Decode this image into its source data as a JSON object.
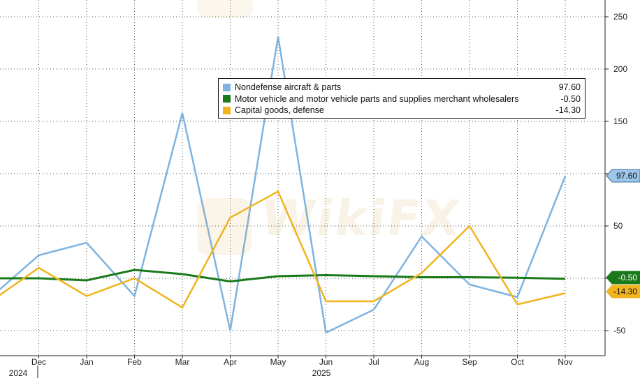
{
  "chart_data": {
    "type": "line",
    "x": [
      "Nov 2024",
      "Dec 2024",
      "Jan 2025",
      "Feb 2025",
      "Mar 2025",
      "Apr 2025",
      "May 2025",
      "Jun 2025",
      "Jul 2025",
      "Aug 2025",
      "Sep 2025",
      "Oct 2025",
      "Nov 2025"
    ],
    "month_labels": [
      "Dec",
      "Jan",
      "Feb",
      "Mar",
      "Apr",
      "May",
      "Jun",
      "Jul",
      "Aug",
      "Sep",
      "Oct",
      "Nov"
    ],
    "year_labels": [
      "2024",
      "2025"
    ],
    "ylim": [
      -60,
      265
    ],
    "yticks": [
      -50,
      50,
      150,
      200,
      250
    ],
    "y_axis_side": "right",
    "grid": true,
    "legend_placement": "top-center",
    "series": [
      {
        "name": "Nondefense aircraft & parts",
        "color": "#7fb3e0",
        "values": [
          -18,
          22,
          34,
          -17,
          158,
          -50,
          231,
          -52,
          -30,
          40,
          -6,
          -18,
          97.6
        ],
        "last_value_label": "97.60"
      },
      {
        "name": "Motor vehicle and motor vehicle parts and supplies merchant wholesalers",
        "color": "#1a7a1a",
        "values": [
          0,
          0,
          -2,
          8,
          4,
          -3,
          2,
          3,
          2,
          1,
          1,
          0.5,
          -0.5
        ],
        "last_value_label": "-0.50"
      },
      {
        "name": "Capital goods, defense",
        "color": "#f0b41e",
        "values": [
          -22,
          10,
          -17,
          0,
          -28,
          58,
          83,
          -22,
          -22,
          5,
          50,
          -25,
          -14.3
        ],
        "last_value_label": "-14.30"
      }
    ]
  }
}
